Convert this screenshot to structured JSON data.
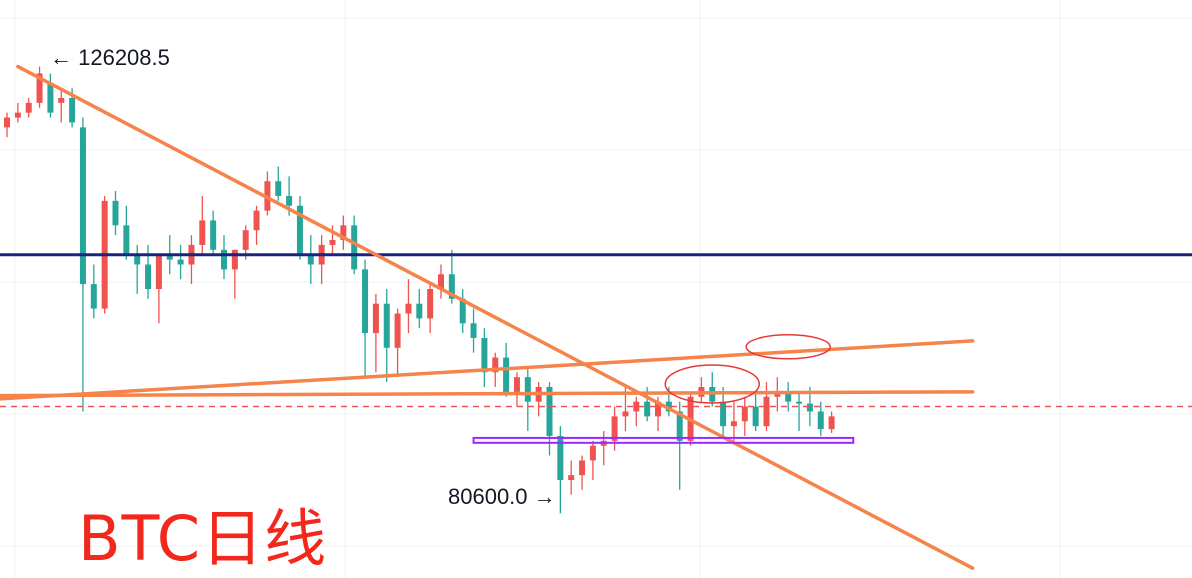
{
  "title": "BTC日线",
  "colors": {
    "up": "#ef5350",
    "down": "#26a69a",
    "trendline": "#f5834a",
    "support_line": "#1a237e",
    "range_box": "#9c27ff",
    "current_price_line": "#ef5350",
    "highlight_ellipse": "#e53935"
  },
  "annotations": {
    "high_label": "← 126208.5",
    "low_label": "80600.0 →"
  },
  "chart_data": {
    "type": "candlestick",
    "title": "BTC日线",
    "y_range": [
      74000,
      133000
    ],
    "high": 126208.5,
    "low": 80600.0,
    "horizontal_levels": [
      {
        "name": "support",
        "value": 107000
      },
      {
        "name": "current",
        "value": 91500
      }
    ],
    "trendlines": [
      {
        "from": {
          "bar": 1,
          "value": 126208.5
        },
        "to": {
          "bar": 89,
          "value": 75000
        }
      },
      {
        "from": {
          "bar": -5,
          "value": 92000
        },
        "to": {
          "bar": 89,
          "value": 98200
        }
      },
      {
        "from": {
          "bar": -5,
          "value": 92600
        },
        "to": {
          "bar": 89,
          "value": 93000
        }
      }
    ],
    "range_box": {
      "from_bar": 43,
      "to_bar": 78,
      "low": 87800,
      "high": 88300
    },
    "highlight_ellipses": [
      {
        "bar": 72,
        "value": 97600
      },
      {
        "bar": 65,
        "value": 93800
      }
    ],
    "candles": [
      [
        120000,
        121500,
        119000,
        121000
      ],
      [
        121000,
        122500,
        120500,
        121500
      ],
      [
        121500,
        123000,
        121000,
        122500
      ],
      [
        122500,
        126208.5,
        122000,
        125500
      ],
      [
        124500,
        125500,
        121000,
        121500
      ],
      [
        122500,
        124000,
        120500,
        123000
      ],
      [
        123000,
        124000,
        120000,
        120500
      ],
      [
        120000,
        121000,
        91000,
        104000
      ],
      [
        104000,
        106000,
        100500,
        101500
      ],
      [
        101500,
        113000,
        101000,
        112500
      ],
      [
        112500,
        113500,
        109000,
        110000
      ],
      [
        110000,
        112000,
        106500,
        107000
      ],
      [
        107000,
        108000,
        103000,
        106000
      ],
      [
        106000,
        108000,
        102500,
        103500
      ],
      [
        103500,
        107000,
        100000,
        107000
      ],
      [
        107000,
        109000,
        105000,
        106500
      ],
      [
        106500,
        108000,
        104500,
        106000
      ],
      [
        106000,
        109000,
        104000,
        108000
      ],
      [
        108000,
        113000,
        107000,
        110500
      ],
      [
        110500,
        111500,
        107000,
        107500
      ],
      [
        107500,
        109000,
        104500,
        105500
      ],
      [
        105500,
        107500,
        102500,
        107500
      ],
      [
        107500,
        110000,
        106500,
        109500
      ],
      [
        109500,
        112000,
        108000,
        111500
      ],
      [
        111500,
        115500,
        111000,
        114500
      ],
      [
        114500,
        116000,
        112500,
        113000
      ],
      [
        113000,
        115000,
        111000,
        112000
      ],
      [
        112000,
        113000,
        106500,
        107000
      ],
      [
        107000,
        109000,
        104000,
        106000
      ],
      [
        106000,
        109000,
        104000,
        108000
      ],
      [
        108000,
        110000,
        107000,
        108500
      ],
      [
        108500,
        111000,
        107500,
        110000
      ],
      [
        110000,
        111000,
        105000,
        105500
      ],
      [
        105500,
        106500,
        94500,
        99000
      ],
      [
        99000,
        103000,
        95000,
        102000
      ],
      [
        102000,
        103500,
        94000,
        97500
      ],
      [
        97500,
        101500,
        94500,
        101000
      ],
      [
        101000,
        104500,
        99000,
        102000
      ],
      [
        102000,
        103500,
        99500,
        100500
      ],
      [
        100500,
        104000,
        99000,
        103500
      ],
      [
        103500,
        106000,
        102500,
        105000
      ],
      [
        105000,
        107500,
        102000,
        102500
      ],
      [
        102500,
        103500,
        99000,
        100000
      ],
      [
        100000,
        101500,
        97000,
        98500
      ],
      [
        98500,
        99500,
        93500,
        95000
      ],
      [
        95000,
        97000,
        93500,
        96500
      ],
      [
        96500,
        98000,
        92500,
        93000
      ],
      [
        93000,
        95000,
        91500,
        94500
      ],
      [
        94500,
        95500,
        89000,
        92000
      ],
      [
        92000,
        94000,
        90500,
        93500
      ],
      [
        93500,
        94000,
        86500,
        88500
      ],
      [
        88500,
        89500,
        80600.0,
        84000
      ],
      [
        84000,
        86000,
        82500,
        84500
      ],
      [
        84500,
        86500,
        83000,
        86000
      ],
      [
        86000,
        88000,
        84000,
        87500
      ],
      [
        87500,
        89000,
        85500,
        88000
      ],
      [
        88000,
        91500,
        87000,
        90500
      ],
      [
        90500,
        93500,
        89000,
        91000
      ],
      [
        91000,
        92500,
        89500,
        92000
      ],
      [
        92000,
        93500,
        90000,
        90500
      ],
      [
        90500,
        92500,
        89000,
        92000
      ],
      [
        92000,
        93500,
        90500,
        91000
      ],
      [
        91000,
        92000,
        83000,
        88000
      ],
      [
        88000,
        93000,
        87500,
        92500
      ],
      [
        92500,
        94500,
        92000,
        93500
      ],
      [
        93500,
        95000,
        91500,
        92000
      ],
      [
        92000,
        93500,
        88500,
        89500
      ],
      [
        89500,
        92000,
        88000,
        90000
      ],
      [
        90000,
        92500,
        88500,
        91500
      ],
      [
        91500,
        93000,
        89000,
        89500
      ],
      [
        89500,
        94000,
        89000,
        92500
      ],
      [
        92500,
        94500,
        91000,
        92800
      ],
      [
        92800,
        94000,
        91000,
        92000
      ],
      [
        92000,
        93000,
        89000,
        91800
      ],
      [
        91800,
        93500,
        89500,
        91000
      ],
      [
        91000,
        92000,
        88500,
        89200
      ],
      [
        89200,
        91000,
        88800,
        90500
      ]
    ]
  }
}
